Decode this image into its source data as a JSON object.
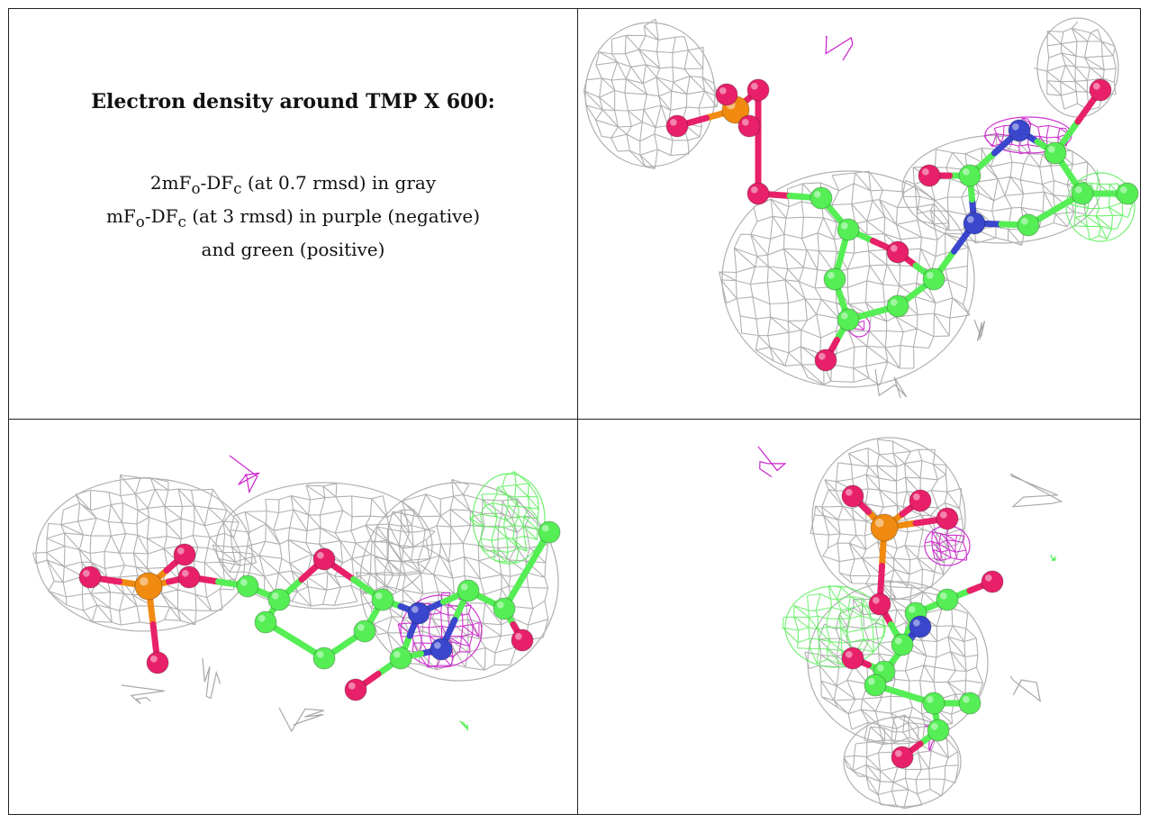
{
  "figure": {
    "title": "Electron density around TMP X 600:",
    "legend_lines": [
      {
        "pre": "2mF",
        "sub1": "o",
        "mid": "-DF",
        "sub2": "c",
        "post": " (at 0.7 rmsd) in gray"
      },
      {
        "pre": "mF",
        "sub1": "o",
        "mid": "-DF",
        "sub2": "c",
        "post": " (at 3 rmsd) in purple (negative)"
      },
      {
        "pre": "",
        "sub1": "",
        "mid": "",
        "sub2": "",
        "post": "and green (positive)"
      }
    ],
    "colors": {
      "mesh_2fofc": "#a8a8a8",
      "mesh_negative": "#cc22cc",
      "mesh_positive": "#55ee55",
      "carbon": "#55ee55",
      "oxygen": "#e8206a",
      "nitrogen": "#3a46cc",
      "phosphorus": "#f08a10",
      "border": "#222222"
    },
    "panels": [
      {
        "id": "view-top-right",
        "ligand": "TMP X 600"
      },
      {
        "id": "view-bottom-left",
        "ligand": "TMP X 600"
      },
      {
        "id": "view-bottom-right",
        "ligand": "TMP X 600"
      }
    ]
  }
}
